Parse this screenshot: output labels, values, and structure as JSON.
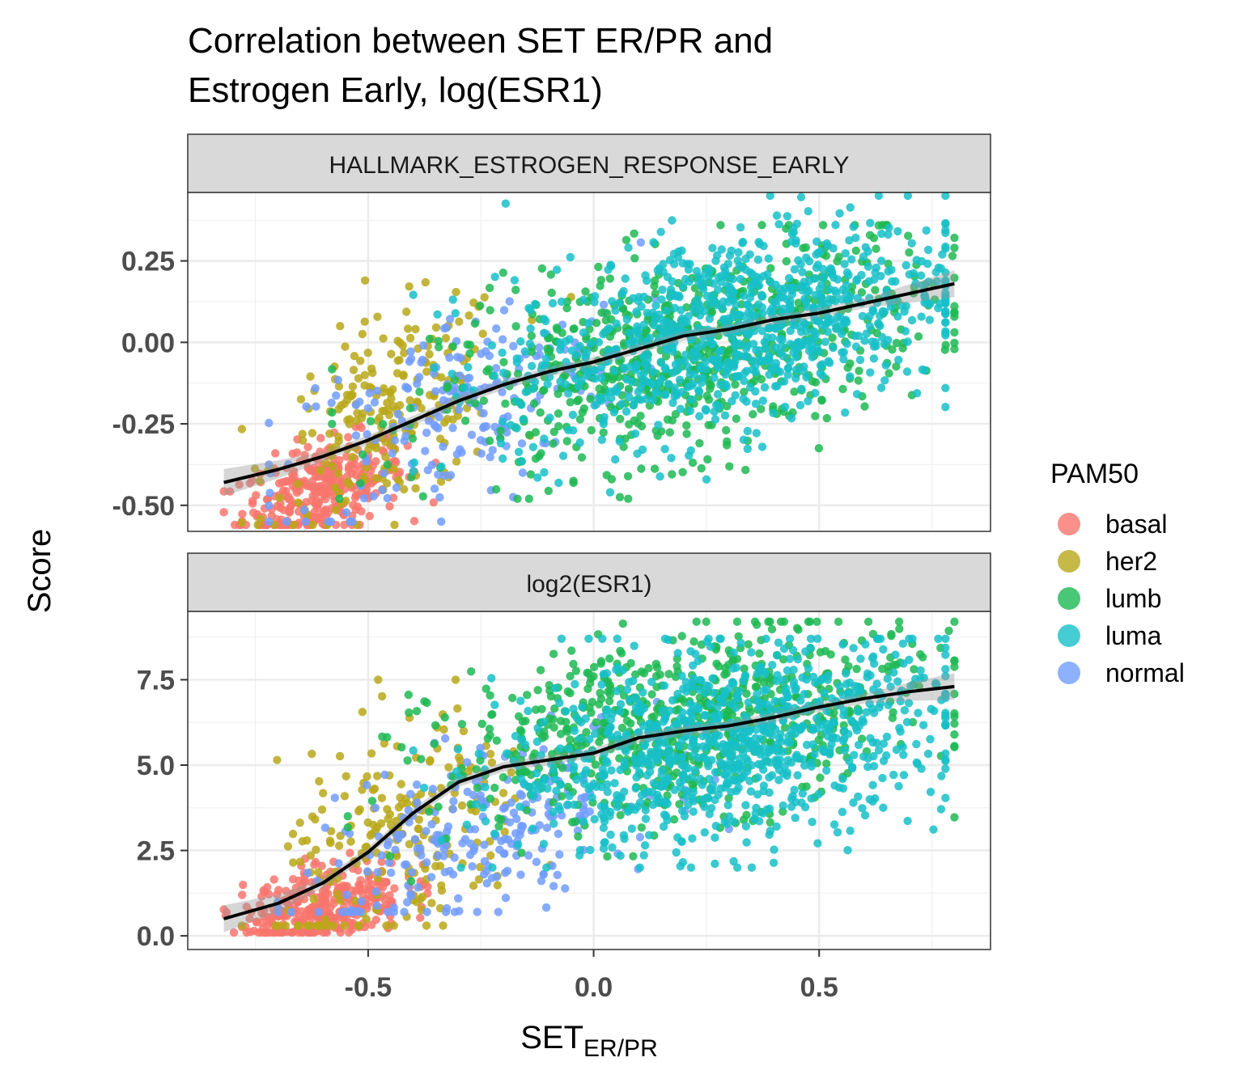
{
  "chart_data": {
    "type": "scatter",
    "title_line1": "Correlation between SET ER/PR and",
    "title_line2": "Estrogen Early, log(ESR1)",
    "xlabel_main": "SET",
    "xlabel_sub": "ER/PR",
    "ylabel": "Score",
    "xlim": [
      -0.9,
      0.88
    ],
    "x_ticks": [
      -0.5,
      0.0,
      0.5
    ],
    "x_tick_labels": [
      "-0.5",
      "0.0",
      "0.5"
    ],
    "grid": true,
    "legend": {
      "title": "PAM50",
      "position": "right",
      "entries": [
        {
          "label": "basal",
          "color": "#F8766D"
        },
        {
          "label": "her2",
          "color": "#A3A500"
        },
        {
          "label": "lumb",
          "color": "#00BF7D"
        },
        {
          "label": "luma",
          "color": "#00B0F6"
        },
        {
          "label": "normal",
          "color": "#E76BF3"
        }
      ]
    },
    "series_colors": {
      "basal": "#F8766D",
      "her2": "#B8A81A",
      "lumb": "#1DB954",
      "luma": "#18C0C8",
      "normal": "#719CFF"
    },
    "panels": [
      {
        "strip": "HALLMARK_ESTROGEN_RESPONSE_EARLY",
        "ylim": [
          -0.58,
          0.46
        ],
        "y_ticks": [
          -0.5,
          -0.25,
          0.0,
          0.25
        ],
        "y_tick_labels": [
          "-0.50",
          "-0.25",
          "0.00",
          "0.25"
        ],
        "smooth": {
          "x": [
            -0.82,
            -0.7,
            -0.6,
            -0.5,
            -0.4,
            -0.3,
            -0.2,
            -0.1,
            0.0,
            0.1,
            0.2,
            0.3,
            0.4,
            0.5,
            0.6,
            0.7,
            0.8
          ],
          "y": [
            -0.43,
            -0.39,
            -0.35,
            -0.3,
            -0.24,
            -0.18,
            -0.13,
            -0.09,
            -0.06,
            -0.02,
            0.02,
            0.04,
            0.07,
            0.09,
            0.12,
            0.15,
            0.18
          ]
        },
        "clusters": [
          {
            "group": "basal",
            "n": 320,
            "x_mean": -0.6,
            "x_sd": 0.09,
            "x_range": [
              -0.82,
              -0.3
            ],
            "y_mean": -0.45,
            "y_sd": 0.07,
            "y_range": [
              -0.56,
              -0.12
            ],
            "slope": 0.4
          },
          {
            "group": "her2",
            "n": 220,
            "x_mean": -0.45,
            "x_sd": 0.13,
            "x_range": [
              -0.78,
              -0.05
            ],
            "y_mean": -0.22,
            "y_sd": 0.15,
            "y_range": [
              -0.56,
              0.19
            ],
            "slope": 0.6
          },
          {
            "group": "normal",
            "n": 200,
            "x_mean": -0.3,
            "x_sd": 0.2,
            "x_range": [
              -0.72,
              0.25
            ],
            "y_mean": -0.2,
            "y_sd": 0.15,
            "y_range": [
              -0.55,
              0.31
            ],
            "slope": 0.5
          },
          {
            "group": "lumb",
            "n": 700,
            "x_mean": 0.2,
            "x_sd": 0.27,
            "x_range": [
              -0.58,
              0.8
            ],
            "y_mean": -0.04,
            "y_sd": 0.15,
            "y_range": [
              -0.48,
              0.36
            ],
            "slope": 0.3
          },
          {
            "group": "luma",
            "n": 900,
            "x_mean": 0.3,
            "x_sd": 0.25,
            "x_range": [
              -0.4,
              0.78
            ],
            "y_mean": 0.04,
            "y_sd": 0.15,
            "y_range": [
              -0.46,
              0.45
            ],
            "slope": 0.3
          }
        ]
      },
      {
        "strip": "log2(ESR1)",
        "ylim": [
          -0.4,
          9.5
        ],
        "y_ticks": [
          0.0,
          2.5,
          5.0,
          7.5
        ],
        "y_tick_labels": [
          "0.0",
          "2.5",
          "5.0",
          "7.5"
        ],
        "smooth": {
          "x": [
            -0.82,
            -0.7,
            -0.6,
            -0.5,
            -0.4,
            -0.3,
            -0.2,
            -0.1,
            0.0,
            0.1,
            0.2,
            0.3,
            0.4,
            0.5,
            0.6,
            0.7,
            0.8
          ],
          "y": [
            0.5,
            0.95,
            1.55,
            2.45,
            3.6,
            4.5,
            4.95,
            5.15,
            5.35,
            5.8,
            6.0,
            6.15,
            6.4,
            6.7,
            6.95,
            7.15,
            7.3
          ]
        },
        "clusters": [
          {
            "group": "basal",
            "n": 320,
            "x_mean": -0.6,
            "x_sd": 0.09,
            "x_range": [
              -0.82,
              -0.3
            ],
            "y_mean": 0.9,
            "y_sd": 0.6,
            "y_range": [
              0.1,
              3.8
            ],
            "slope": 3
          },
          {
            "group": "her2",
            "n": 220,
            "x_mean": -0.42,
            "x_sd": 0.14,
            "x_range": [
              -0.78,
              -0.0
            ],
            "y_mean": 2.8,
            "y_sd": 1.7,
            "y_range": [
              0.3,
              7.5
            ],
            "slope": 5
          },
          {
            "group": "normal",
            "n": 250,
            "x_mean": -0.25,
            "x_sd": 0.2,
            "x_range": [
              -0.7,
              0.3
            ],
            "y_mean": 3.0,
            "y_sd": 1.2,
            "y_range": [
              0.7,
              7.9
            ],
            "slope": 4
          },
          {
            "group": "lumb",
            "n": 700,
            "x_mean": 0.2,
            "x_sd": 0.27,
            "x_range": [
              -0.55,
              0.8
            ],
            "y_mean": 6.2,
            "y_sd": 1.3,
            "y_range": [
              1.6,
              9.2
            ],
            "slope": 2
          },
          {
            "group": "luma",
            "n": 900,
            "x_mean": 0.3,
            "x_sd": 0.25,
            "x_range": [
              -0.4,
              0.78
            ],
            "y_mean": 5.6,
            "y_sd": 1.4,
            "y_range": [
              2.0,
              8.7
            ],
            "slope": 2
          }
        ]
      }
    ]
  }
}
